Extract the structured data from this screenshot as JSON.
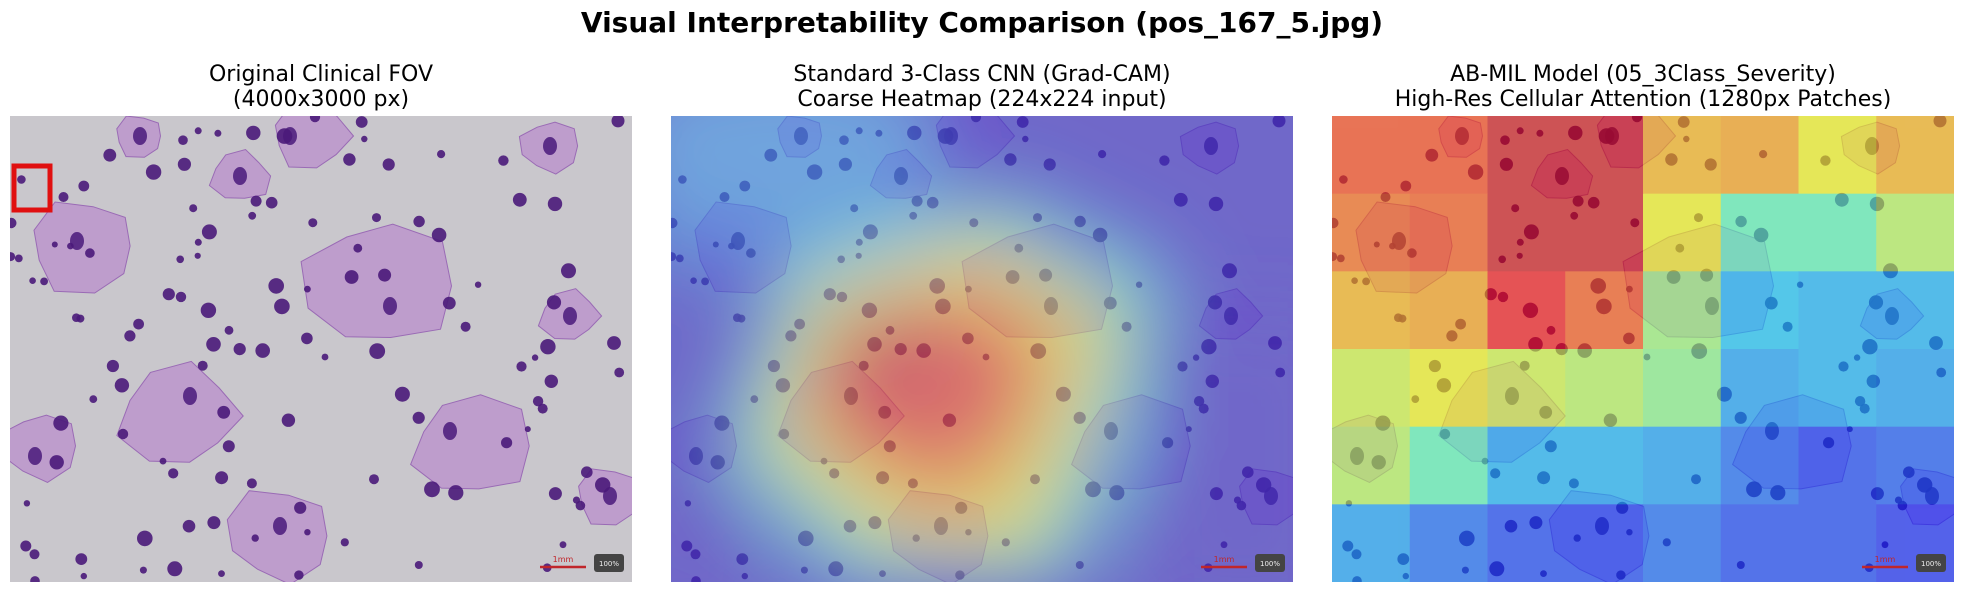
{
  "figure": {
    "title": "Visual Interpretability Comparison (pos_167_5.jpg)"
  },
  "panels": [
    {
      "title_line1": "Original Clinical FOV",
      "title_line2": "(4000x3000 px)",
      "scale_bar_label": "1mm",
      "zoom_badge": "100%"
    },
    {
      "title_line1": "Standard 3-Class CNN (Grad-CAM)",
      "title_line2": "Coarse Heatmap (224x224 input)",
      "scale_bar_label": "1mm",
      "zoom_badge": "100%"
    },
    {
      "title_line1": "AB-MIL Model (05_3Class_Severity)",
      "title_line2": "High-Res Cellular Attention (1280px Patches)",
      "scale_bar_label": "1mm",
      "zoom_badge": "100%"
    }
  ],
  "colors": {
    "background_tissue": "#c9c7cc",
    "stain_cytoplasm": "#b98fcc",
    "stain_nucleus": "#4a1a7a",
    "highlight_box": "#e01010",
    "scale_bar": "#c0262b"
  },
  "attention_grid": {
    "colormap": "jet",
    "rows": 6,
    "cols": 8,
    "values": [
      [
        0.82,
        0.82,
        0.92,
        0.92,
        0.7,
        0.72,
        0.62,
        0.7
      ],
      [
        0.78,
        0.8,
        0.92,
        0.92,
        0.62,
        0.45,
        0.45,
        0.55
      ],
      [
        0.7,
        0.72,
        0.88,
        0.8,
        0.52,
        0.32,
        0.3,
        0.3
      ],
      [
        0.58,
        0.62,
        0.58,
        0.55,
        0.5,
        0.28,
        0.3,
        0.28
      ],
      [
        0.55,
        0.45,
        0.3,
        0.3,
        0.28,
        0.22,
        0.18,
        0.2
      ],
      [
        0.28,
        0.22,
        0.18,
        0.18,
        0.22,
        0.18,
        0.18,
        0.15
      ]
    ]
  }
}
